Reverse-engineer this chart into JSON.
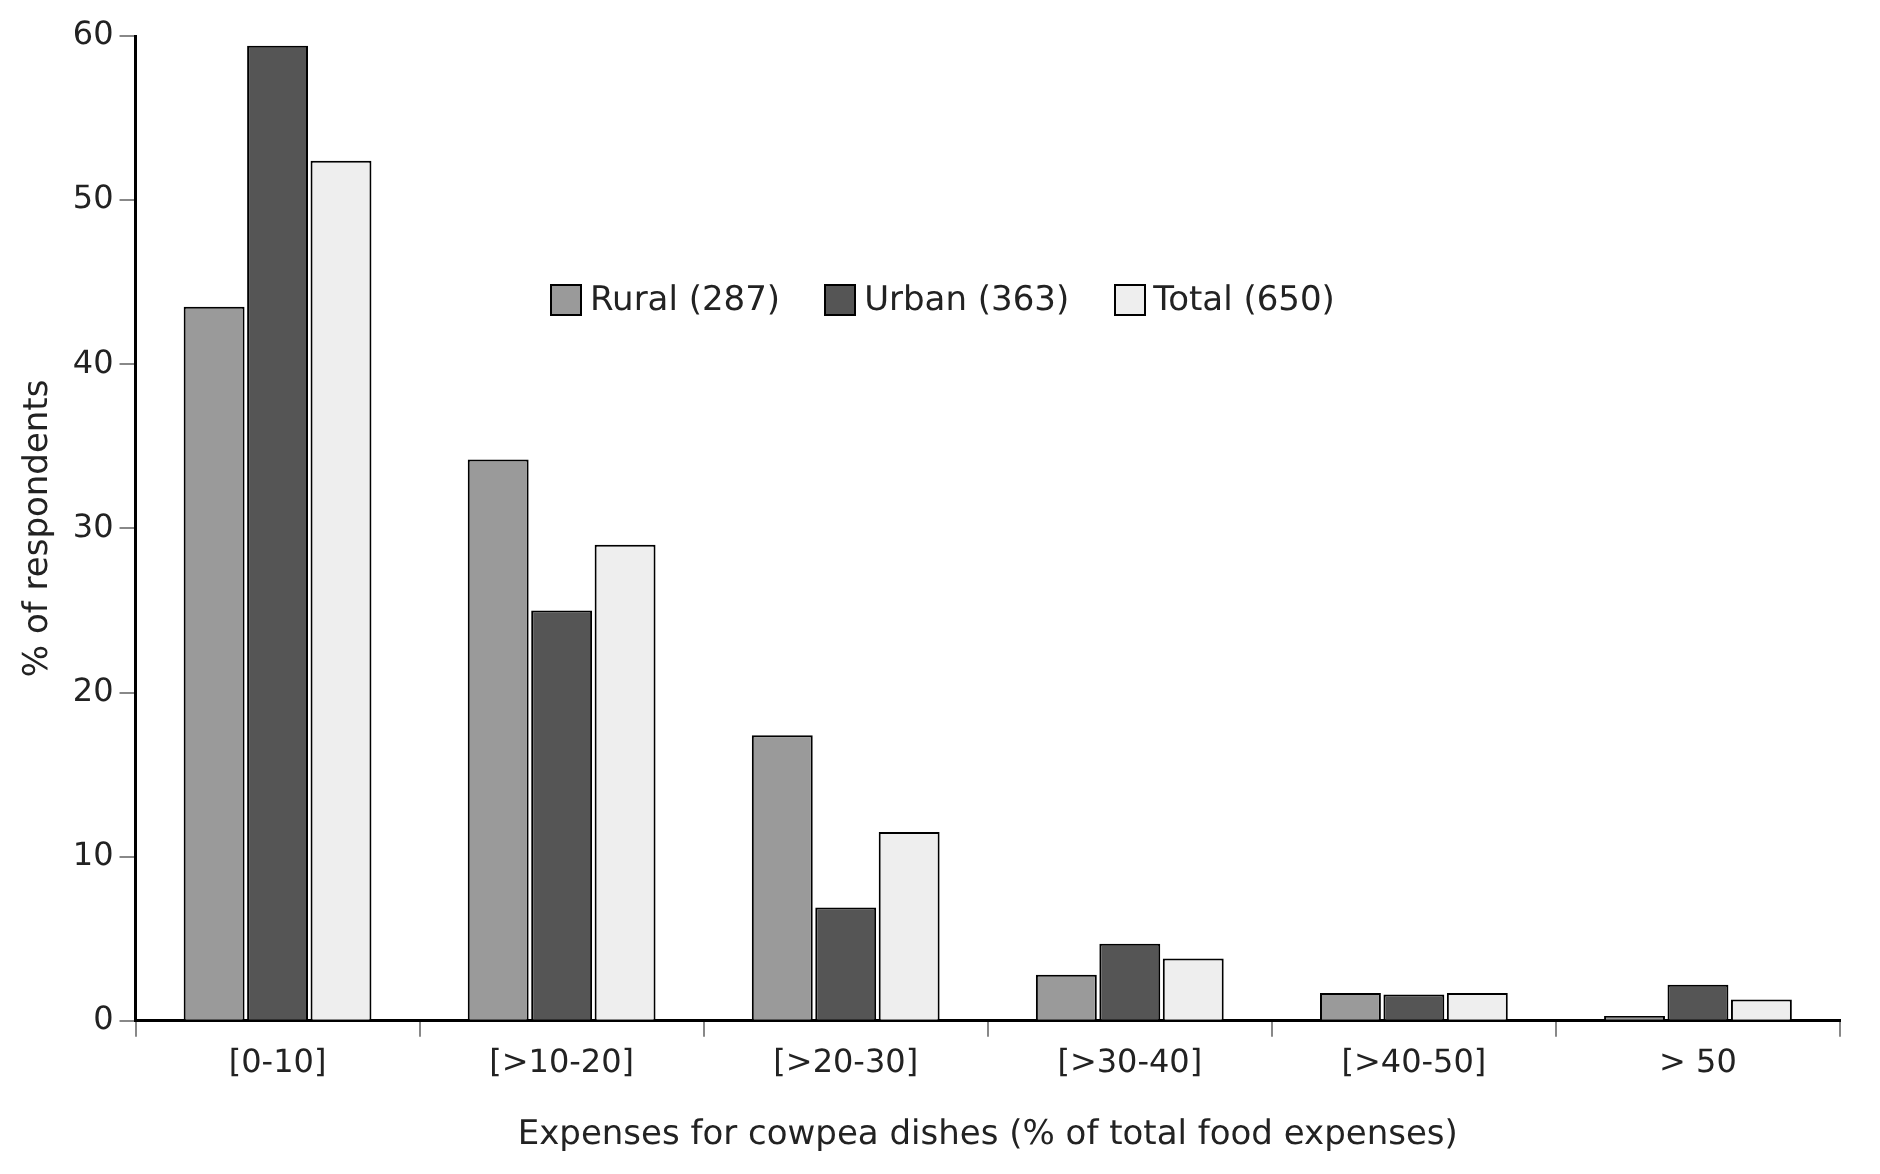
{
  "chart_data": {
    "type": "bar",
    "xlabel": "Expenses for cowpea dishes (% of total food expenses)",
    "ylabel": "% of respondents",
    "categories": [
      "[0-10]",
      "[>10-20]",
      "[>20-30]",
      "[>30-40]",
      "[>40-50]",
      "> 50"
    ],
    "series": [
      {
        "name": "Rural (287)",
        "color": "#9a9a9a",
        "values": [
          43.5,
          34.2,
          17.4,
          2.8,
          1.7,
          0.3
        ]
      },
      {
        "name": "Urban (363)",
        "color": "#555555",
        "values": [
          59.4,
          25.0,
          6.9,
          4.7,
          1.6,
          2.2
        ]
      },
      {
        "name": "Total (650)",
        "color": "#eeeeee",
        "values": [
          52.4,
          29.0,
          11.5,
          3.8,
          1.7,
          1.3
        ]
      }
    ],
    "ylim": [
      0,
      60
    ],
    "yticks": [
      0,
      10,
      20,
      30,
      40,
      50,
      60
    ],
    "grid": false,
    "legend": "top"
  }
}
